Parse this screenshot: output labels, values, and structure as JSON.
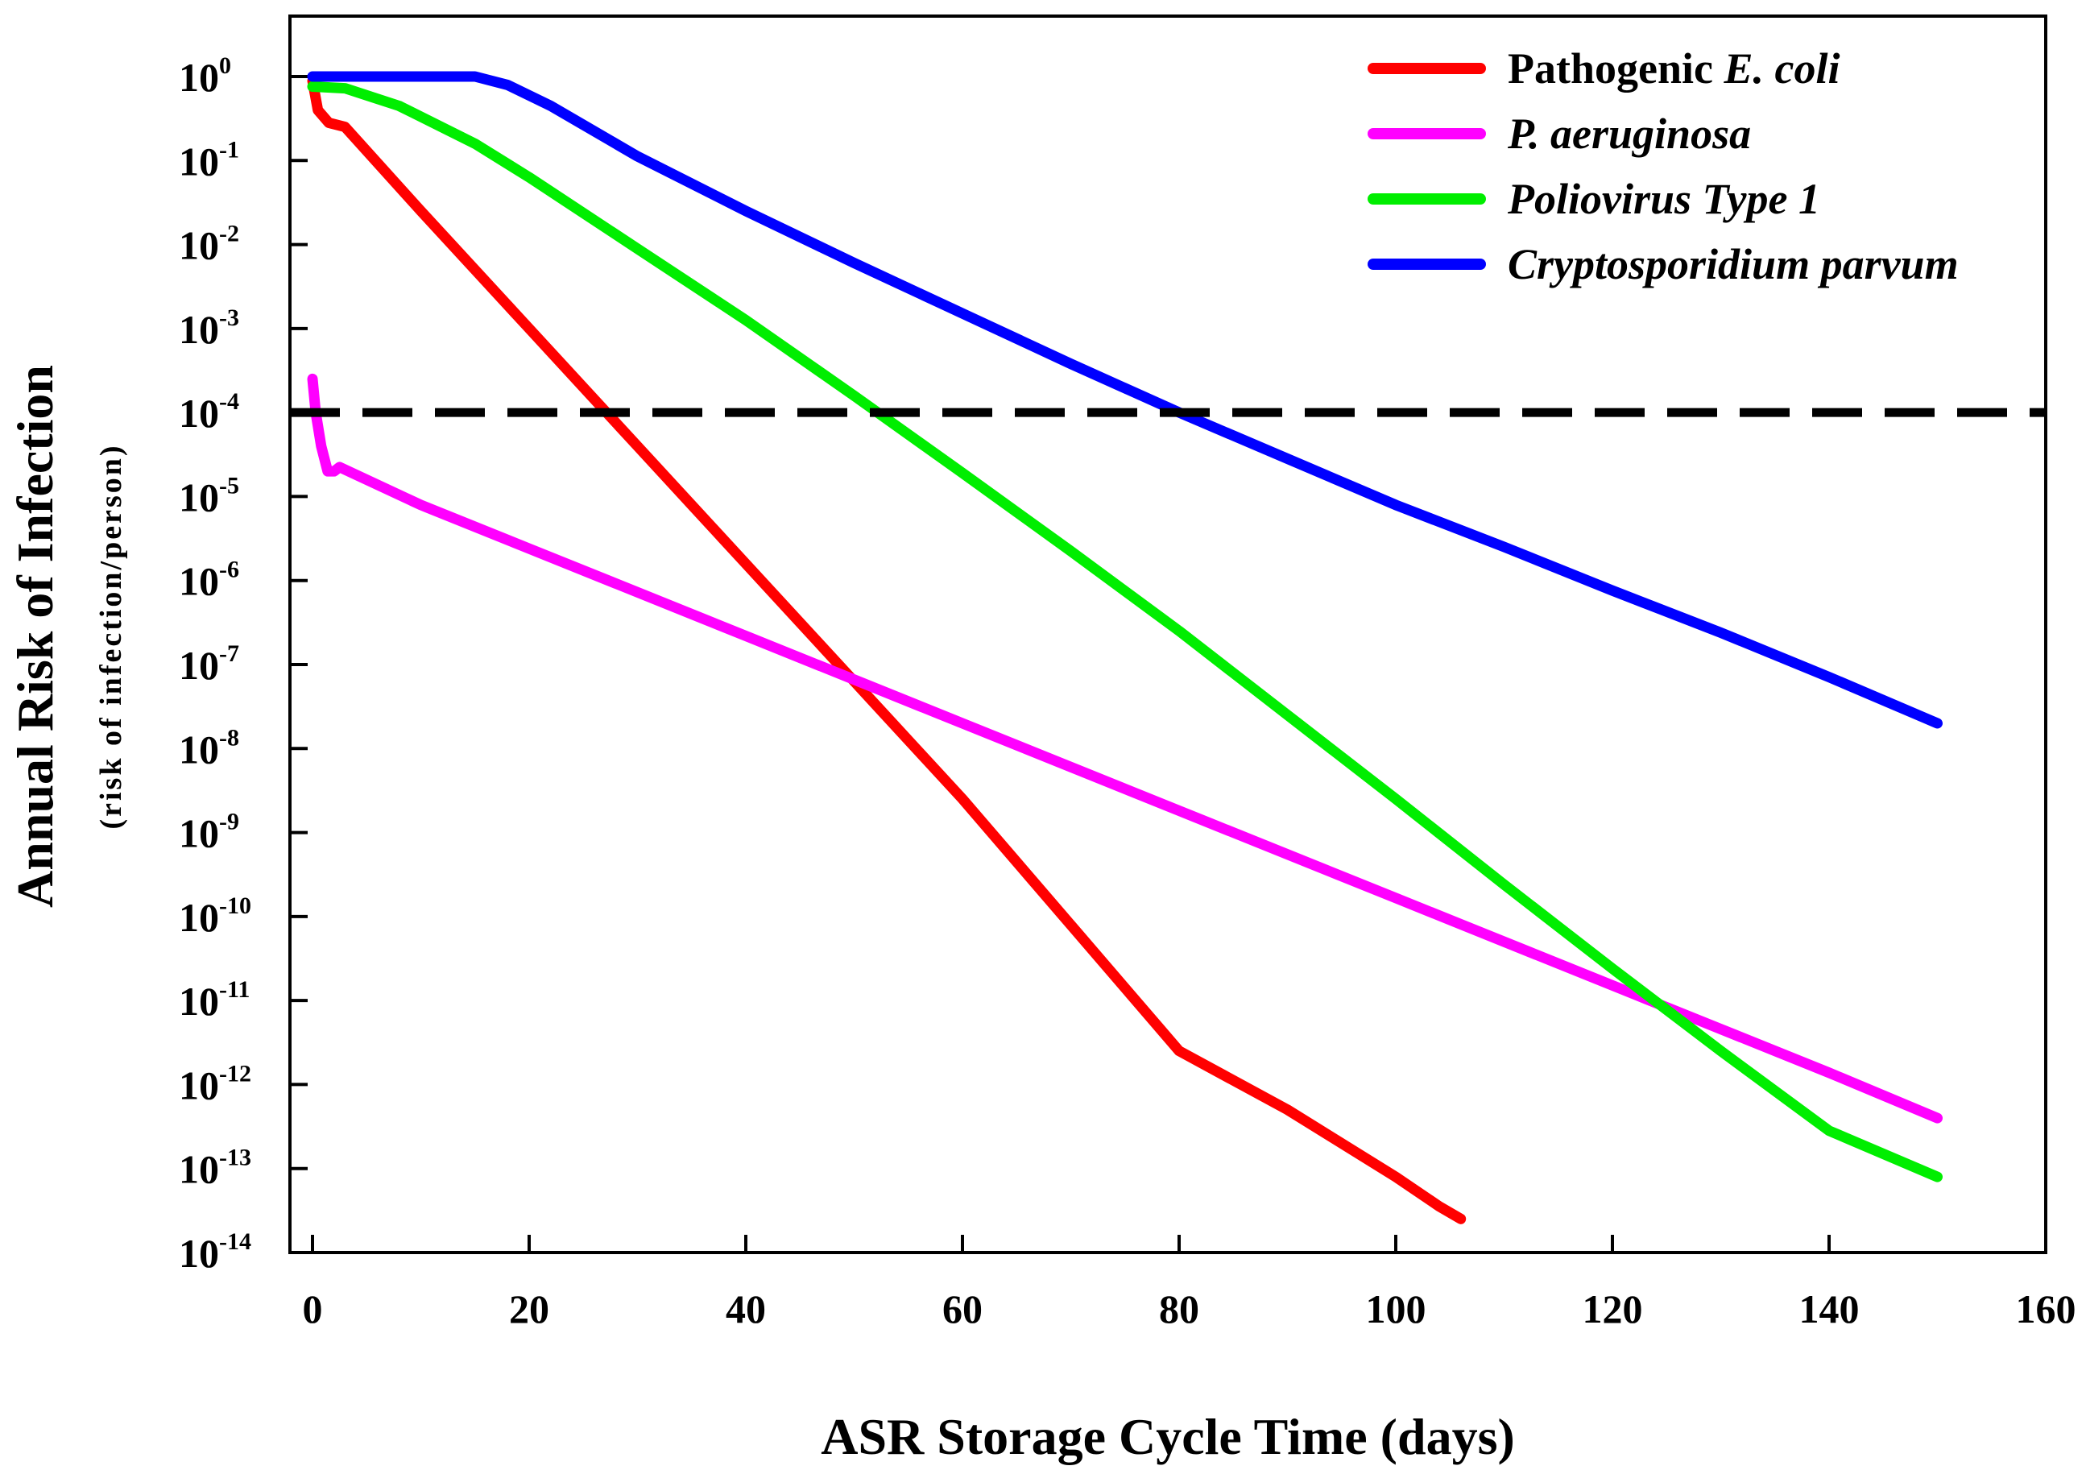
{
  "chart_data": {
    "type": "line",
    "title": "",
    "xlabel": "ASR Storage Cycle Time (days)",
    "ylabel": "Annual Risk of Infection",
    "ylabel_sub": "(risk of infection/person)",
    "y_scale": "log",
    "xlim": [
      0,
      160
    ],
    "ylim_exponent": [
      -14,
      0
    ],
    "x_ticks": [
      0,
      20,
      40,
      60,
      80,
      100,
      120,
      140,
      160
    ],
    "y_tick_exponents": [
      0,
      -1,
      -2,
      -3,
      -4,
      -5,
      -6,
      -7,
      -8,
      -9,
      -10,
      -11,
      -12,
      -13,
      -14
    ],
    "y_tick_base": "10",
    "grid": false,
    "legend_position": "top-right",
    "threshold": {
      "y_exponent": -4,
      "style": "dashed",
      "color": "#000000"
    },
    "series": [
      {
        "name": "Pathogenic E. coli",
        "legend_parts": [
          {
            "text": "Pathogenic ",
            "italic": false
          },
          {
            "text": "E. coli",
            "italic": true
          }
        ],
        "color": "#ff0000",
        "x": [
          0,
          0.5,
          1.5,
          3,
          10,
          20,
          30,
          40,
          50,
          60,
          70,
          80,
          90,
          100,
          104,
          106
        ],
        "log10_y": [
          -0.05,
          -0.4,
          -0.55,
          -0.6,
          -1.6,
          -3.0,
          -4.4,
          -5.8,
          -7.2,
          -8.6,
          -10.1,
          -11.6,
          -12.3,
          -13.1,
          -13.45,
          -13.6
        ]
      },
      {
        "name": "P. aeruginosa",
        "legend_parts": [
          {
            "text": "P.  aeruginosa",
            "italic": true
          }
        ],
        "color": "#ff00ff",
        "x": [
          0,
          0.3,
          0.8,
          1.4,
          2,
          2.5,
          10,
          20,
          40,
          60,
          80,
          100,
          120,
          140,
          150
        ],
        "log10_y": [
          -3.6,
          -4.0,
          -4.4,
          -4.7,
          -4.7,
          -4.65,
          -5.1,
          -5.62,
          -6.66,
          -7.7,
          -8.74,
          -9.78,
          -10.82,
          -11.86,
          -12.4
        ]
      },
      {
        "name": "Poliovirus Type 1",
        "legend_parts": [
          {
            "text": "Poliovirus Type 1",
            "italic": true
          }
        ],
        "color": "#00ee00",
        "x": [
          0,
          3,
          8,
          15,
          20,
          30,
          40,
          50,
          60,
          70,
          80,
          90,
          100,
          110,
          120,
          130,
          140,
          150
        ],
        "log10_y": [
          -0.12,
          -0.14,
          -0.35,
          -0.8,
          -1.2,
          -2.05,
          -2.9,
          -3.8,
          -4.72,
          -5.65,
          -6.6,
          -7.6,
          -8.6,
          -9.62,
          -10.62,
          -11.6,
          -12.55,
          -13.1
        ]
      },
      {
        "name": "Cryptosporidium parvum",
        "legend_parts": [
          {
            "text": "Cryptosporidium parvum",
            "italic": true
          }
        ],
        "color": "#0000ff",
        "x": [
          0,
          5,
          10,
          15,
          18,
          22,
          30,
          40,
          50,
          60,
          70,
          80,
          90,
          100,
          110,
          120,
          130,
          140,
          150
        ],
        "log10_y": [
          0,
          0,
          0,
          0,
          -0.1,
          -0.35,
          -0.95,
          -1.6,
          -2.22,
          -2.82,
          -3.42,
          -4.0,
          -4.55,
          -5.1,
          -5.6,
          -6.12,
          -6.62,
          -7.15,
          -7.7
        ]
      }
    ]
  }
}
